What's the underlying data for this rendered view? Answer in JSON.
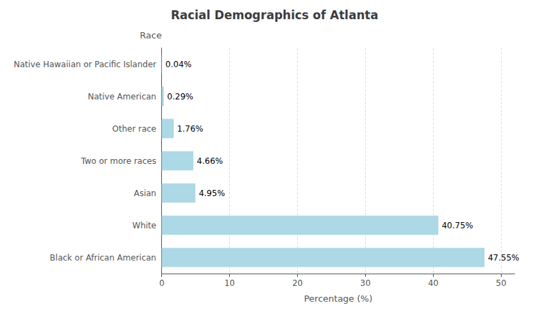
{
  "chart_data": {
    "type": "bar",
    "orientation": "horizontal",
    "title": "Racial Demographics of Atlanta",
    "xlabel": "Percentage (%)",
    "ylabel": "Race",
    "categories": [
      "Black or African American",
      "White",
      "Asian",
      "Two or more races",
      "Other race",
      "Native American",
      "Native Hawaiian or Pacific Islander"
    ],
    "values": [
      47.55,
      40.75,
      4.95,
      4.66,
      1.76,
      0.29,
      0.04
    ],
    "value_labels": [
      "47.55%",
      "40.75%",
      "4.95%",
      "4.66%",
      "1.76%",
      "0.29%",
      "0.04%"
    ],
    "data_labels": true,
    "color": "#add8e6",
    "xlim": [
      0,
      52
    ],
    "xticks": [
      0,
      10,
      20,
      30,
      40,
      50
    ],
    "grid": true
  }
}
